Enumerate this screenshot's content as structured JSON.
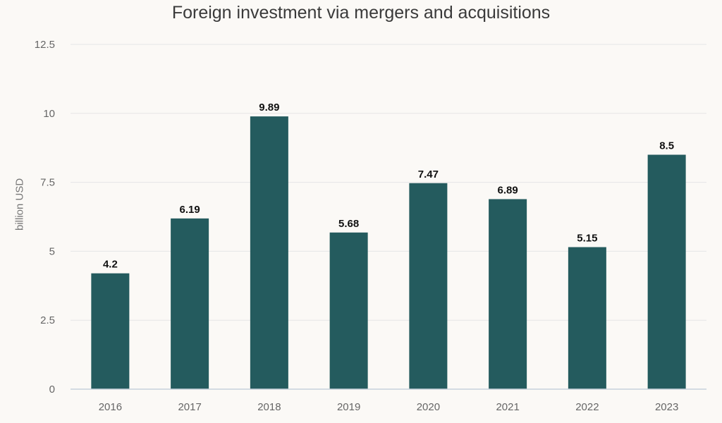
{
  "chart_data": {
    "type": "bar",
    "title": "Foreign investment via mergers and acquisitions",
    "ylabel": "billion USD",
    "xlabel": "",
    "categories": [
      "2016",
      "2017",
      "2018",
      "2019",
      "2020",
      "2021",
      "2022",
      "2023"
    ],
    "values": [
      4.2,
      6.19,
      9.89,
      5.68,
      7.47,
      6.89,
      5.15,
      8.5
    ],
    "data_labels": [
      "4.2",
      "6.19",
      "9.89",
      "5.68",
      "7.47",
      "6.89",
      "5.15",
      "8.5"
    ],
    "yticks": [
      0,
      2.5,
      5,
      7.5,
      10,
      12.5
    ],
    "ytick_labels": [
      "0",
      "2.5",
      "5",
      "7.5",
      "10",
      "12.5"
    ],
    "ylim": [
      0,
      12.5
    ],
    "grid": "horizontal",
    "legend": "none",
    "colors": {
      "bar": "#245b5e",
      "background": "#fbf9f6"
    }
  }
}
